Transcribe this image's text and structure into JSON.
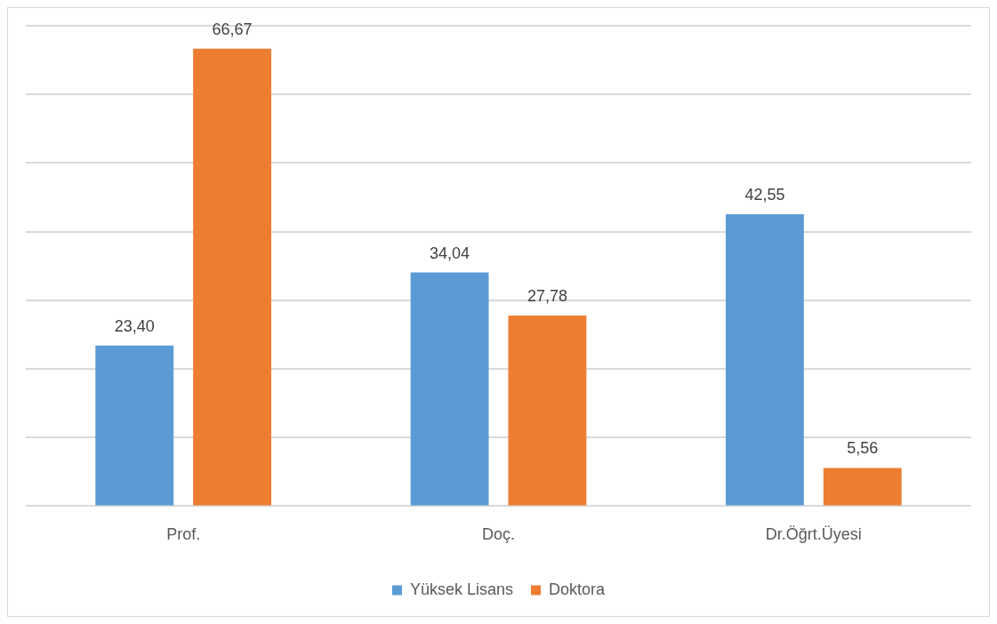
{
  "chart_data": {
    "type": "bar",
    "categories": [
      "Prof.",
      "Doç.",
      "Dr.Öğrt.Üyesi"
    ],
    "series": [
      {
        "name": "Yüksek Lisans",
        "color": "#5b9bd5",
        "values": [
          23.4,
          34.04,
          42.55
        ],
        "value_labels": [
          "23,40",
          "34,04",
          "42,55"
        ]
      },
      {
        "name": "Doktora",
        "color": "#ed7d31",
        "values": [
          66.67,
          27.78,
          5.56
        ],
        "value_labels": [
          "66,67",
          "27,78",
          "5,56"
        ]
      }
    ],
    "tick_labels": "x",
    "grid": "y",
    "legend": "bottom"
  }
}
